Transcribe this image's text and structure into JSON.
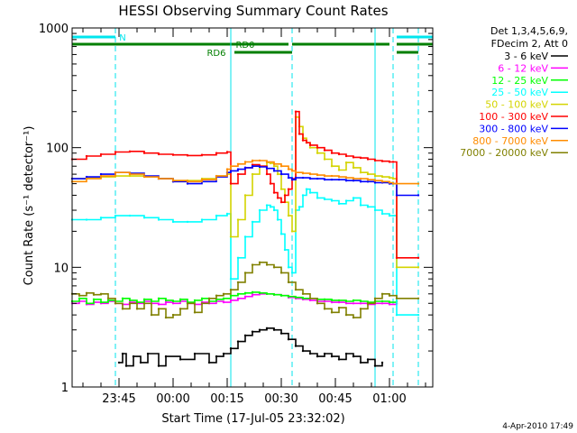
{
  "chart_data": {
    "type": "line",
    "title": "HESSI Observing Summary Count Rates",
    "xlabel": "Start Time (17-Jul-05 23:32:02)",
    "ylabel": "Count Rate (s⁻¹ detector⁻¹)",
    "yscale": "log",
    "ylim": [
      1,
      1000
    ],
    "xlim_minutes_from_start": [
      0,
      100
    ],
    "x_ticks": [
      {
        "label": "23:45",
        "t": 13
      },
      {
        "label": "00:00",
        "t": 28
      },
      {
        "label": "00:15",
        "t": 43
      },
      {
        "label": "00:30",
        "t": 58
      },
      {
        "label": "00:45",
        "t": 73
      },
      {
        "label": "01:00",
        "t": 88
      }
    ],
    "y_ticks": [
      {
        "label": "1",
        "v": 1
      },
      {
        "label": "10",
        "v": 10
      },
      {
        "label": "100",
        "v": 100
      },
      {
        "label": "1000",
        "v": 1000
      }
    ],
    "legend_header": [
      "Det 1,3,4,5,6,9,",
      "FDecim 2, Att 0"
    ],
    "legend_placement": "right",
    "footer_date": "4-Apr-2010 17:49",
    "flags": [
      {
        "label": "N",
        "color": "#00e5ee",
        "segments": [
          [
            0,
            12
          ],
          [
            90,
            100
          ]
        ],
        "label_t": 14
      },
      {
        "label": "RD0",
        "color": "#007f00",
        "segments": [
          [
            0,
            60
          ],
          [
            61,
            88
          ],
          [
            90,
            100
          ]
        ],
        "label_t": 48
      },
      {
        "label": "RD6",
        "color": "#007f00",
        "segments": [
          [
            45,
            61
          ],
          [
            90,
            96
          ]
        ],
        "label_t": 40
      }
    ],
    "vlines": [
      {
        "t": 0,
        "dashed": false,
        "color": "#00e5ee"
      },
      {
        "t": 12,
        "dashed": true,
        "color": "#00e5ee"
      },
      {
        "t": 44,
        "dashed": false,
        "color": "#00e5ee"
      },
      {
        "t": 61,
        "dashed": true,
        "color": "#00e5ee"
      },
      {
        "t": 84,
        "dashed": false,
        "color": "#00e5ee"
      },
      {
        "t": 89,
        "dashed": true,
        "color": "#00e5ee"
      },
      {
        "t": 96,
        "dashed": true,
        "color": "#00e5ee"
      }
    ],
    "series": [
      {
        "name": "3 - 6 keV",
        "color": "#000000",
        "t": [
          13,
          14,
          15,
          17,
          19,
          21,
          24,
          26,
          30,
          34,
          38,
          40,
          42,
          44,
          46,
          48,
          50,
          52,
          54,
          56,
          58,
          60,
          62,
          64,
          66,
          68,
          70,
          72,
          74,
          76,
          78,
          80,
          82,
          84,
          86
        ],
        "values": [
          1.6,
          1.9,
          1.5,
          1.8,
          1.6,
          1.9,
          1.5,
          1.8,
          1.7,
          1.9,
          1.6,
          1.8,
          1.9,
          2.1,
          2.4,
          2.7,
          2.9,
          3.0,
          3.1,
          3.0,
          2.8,
          2.5,
          2.2,
          2.0,
          1.9,
          1.8,
          1.9,
          1.8,
          1.7,
          1.9,
          1.8,
          1.6,
          1.7,
          1.5,
          1.6
        ]
      },
      {
        "name": "6 - 12 keV",
        "color": "#ff00ff",
        "t": [
          0,
          2,
          4,
          6,
          8,
          10,
          12,
          14,
          16,
          18,
          20,
          22,
          24,
          26,
          28,
          30,
          32,
          34,
          36,
          38,
          40,
          42,
          44,
          46,
          48,
          50,
          52,
          54,
          56,
          58,
          60,
          62,
          64,
          66,
          68,
          70,
          72,
          74,
          76,
          78,
          80,
          82,
          84,
          86,
          88,
          90
        ],
        "values": [
          5.0,
          5.2,
          4.9,
          5.1,
          5.0,
          5.2,
          5.0,
          4.9,
          5.1,
          5.0,
          5.2,
          5.0,
          4.9,
          5.1,
          5.0,
          5.2,
          5.0,
          4.9,
          5.1,
          5.0,
          5.2,
          5.1,
          5.3,
          5.5,
          5.7,
          5.9,
          6.0,
          6.0,
          5.9,
          5.8,
          5.6,
          5.5,
          5.4,
          5.3,
          5.2,
          5.2,
          5.1,
          5.1,
          5.0,
          5.0,
          5.0,
          4.9,
          5.0,
          5.0,
          4.9,
          5.0
        ]
      },
      {
        "name": "12 - 25 keV",
        "color": "#00ff00",
        "t": [
          0,
          2,
          4,
          6,
          8,
          10,
          12,
          14,
          16,
          18,
          20,
          22,
          24,
          26,
          28,
          30,
          32,
          34,
          36,
          38,
          40,
          42,
          44,
          46,
          48,
          50,
          52,
          54,
          56,
          58,
          60,
          62,
          64,
          66,
          68,
          70,
          72,
          74,
          76,
          78,
          80,
          82,
          84,
          86,
          88,
          90
        ],
        "values": [
          5.2,
          5.5,
          5.0,
          5.4,
          5.1,
          5.3,
          5.2,
          5.5,
          5.3,
          5.1,
          5.4,
          5.2,
          5.5,
          5.3,
          5.2,
          5.4,
          5.1,
          5.3,
          5.5,
          5.2,
          5.4,
          5.5,
          5.8,
          6.0,
          6.1,
          6.2,
          6.1,
          6.0,
          5.9,
          5.8,
          5.7,
          5.6,
          5.5,
          5.5,
          5.4,
          5.4,
          5.3,
          5.3,
          5.2,
          5.3,
          5.2,
          5.1,
          5.2,
          5.2,
          5.1,
          5.2
        ]
      },
      {
        "name": "25 - 50 keV",
        "color": "#00ffff",
        "t": [
          0,
          4,
          8,
          12,
          16,
          20,
          24,
          28,
          32,
          36,
          40,
          43,
          44,
          46,
          48,
          50,
          52,
          54,
          55,
          56,
          57,
          58,
          59,
          60,
          61,
          62,
          63,
          64,
          65,
          66,
          68,
          70,
          72,
          74,
          76,
          78,
          80,
          82,
          84,
          86,
          88,
          89,
          90,
          96
        ],
        "values": [
          25,
          25,
          26,
          27,
          27,
          26,
          25,
          24,
          24,
          25,
          27,
          28,
          8,
          12,
          18,
          24,
          30,
          33,
          32,
          30,
          25,
          19,
          14,
          10,
          9,
          30,
          32,
          40,
          45,
          42,
          38,
          37,
          36,
          34,
          36,
          38,
          33,
          32,
          30,
          28,
          27,
          27,
          4,
          4
        ]
      },
      {
        "name": "50 - 100 keV",
        "color": "#d4d400",
        "t": [
          0,
          4,
          8,
          12,
          16,
          20,
          24,
          28,
          32,
          36,
          40,
          43,
          44,
          46,
          48,
          50,
          52,
          54,
          55,
          56,
          57,
          58,
          59,
          60,
          61,
          62,
          63,
          64,
          65,
          66,
          68,
          70,
          72,
          74,
          76,
          78,
          80,
          82,
          84,
          86,
          88,
          89,
          90,
          96
        ],
        "values": [
          55,
          56,
          57,
          58,
          58,
          57,
          55,
          53,
          53,
          55,
          58,
          60,
          18,
          25,
          40,
          60,
          70,
          75,
          74,
          70,
          60,
          45,
          35,
          27,
          20,
          180,
          150,
          120,
          110,
          100,
          90,
          80,
          70,
          65,
          75,
          68,
          62,
          60,
          58,
          57,
          56,
          55,
          10,
          10
        ]
      },
      {
        "name": "100 - 300 keV",
        "color": "#ff0000",
        "t": [
          0,
          4,
          8,
          12,
          16,
          20,
          24,
          28,
          32,
          36,
          40,
          43,
          44,
          46,
          48,
          50,
          52,
          54,
          55,
          56,
          57,
          58,
          59,
          60,
          61,
          62,
          63,
          64,
          65,
          66,
          68,
          70,
          72,
          74,
          76,
          78,
          80,
          82,
          84,
          86,
          88,
          89,
          90,
          96
        ],
        "values": [
          80,
          85,
          88,
          92,
          93,
          90,
          88,
          87,
          86,
          87,
          90,
          92,
          50,
          60,
          68,
          72,
          70,
          60,
          50,
          42,
          38,
          35,
          40,
          45,
          55,
          200,
          130,
          115,
          110,
          105,
          100,
          95,
          90,
          88,
          85,
          83,
          82,
          80,
          78,
          77,
          76,
          76,
          12,
          12
        ]
      },
      {
        "name": "300 - 800 keV",
        "color": "#0000ff",
        "t": [
          0,
          4,
          8,
          12,
          16,
          20,
          24,
          28,
          32,
          36,
          40,
          43,
          44,
          46,
          48,
          50,
          52,
          54,
          56,
          58,
          60,
          61,
          62,
          64,
          66,
          68,
          70,
          72,
          74,
          76,
          78,
          80,
          82,
          84,
          86,
          88,
          89,
          90,
          96
        ],
        "values": [
          55,
          57,
          60,
          62,
          61,
          58,
          55,
          52,
          50,
          52,
          57,
          62,
          64,
          66,
          68,
          70,
          69,
          67,
          64,
          60,
          56,
          54,
          56,
          56,
          55,
          55,
          54,
          54,
          54,
          53,
          53,
          52,
          52,
          51,
          51,
          50,
          50,
          40,
          40
        ]
      },
      {
        "name": "800 - 7000 keV",
        "color": "#ff8c00",
        "t": [
          0,
          4,
          8,
          12,
          16,
          20,
          24,
          28,
          32,
          36,
          40,
          43,
          44,
          46,
          48,
          50,
          52,
          54,
          56,
          58,
          60,
          61,
          62,
          64,
          66,
          68,
          70,
          72,
          74,
          76,
          78,
          80,
          82,
          84,
          86,
          88,
          89,
          90,
          96
        ],
        "values": [
          52,
          55,
          58,
          62,
          60,
          57,
          55,
          53,
          52,
          54,
          58,
          66,
          70,
          73,
          76,
          78,
          78,
          76,
          73,
          70,
          66,
          64,
          62,
          61,
          60,
          59,
          58,
          58,
          57,
          56,
          55,
          55,
          54,
          53,
          52,
          51,
          50,
          50,
          50
        ]
      },
      {
        "name": "7000 - 20000 keV",
        "color": "#808000",
        "t": [
          0,
          2,
          4,
          6,
          8,
          10,
          12,
          14,
          16,
          18,
          20,
          22,
          24,
          26,
          28,
          30,
          32,
          34,
          36,
          38,
          40,
          42,
          44,
          46,
          48,
          50,
          52,
          54,
          56,
          58,
          60,
          62,
          64,
          66,
          68,
          70,
          72,
          74,
          76,
          78,
          80,
          82,
          84,
          86,
          88,
          90,
          96
        ],
        "values": [
          6.0,
          5.8,
          6.1,
          5.9,
          6.0,
          5.5,
          5.0,
          4.5,
          5.0,
          4.5,
          5.0,
          4.0,
          4.5,
          3.8,
          4.0,
          4.5,
          5.0,
          4.2,
          5.0,
          5.5,
          5.8,
          6.0,
          6.5,
          7.5,
          9.0,
          10.5,
          11.0,
          10.5,
          10.0,
          9.0,
          7.5,
          6.5,
          6.0,
          5.5,
          5.0,
          4.5,
          4.2,
          4.6,
          4.0,
          3.8,
          4.5,
          5.0,
          5.5,
          6.0,
          5.8,
          5.5,
          5.5
        ]
      }
    ]
  }
}
